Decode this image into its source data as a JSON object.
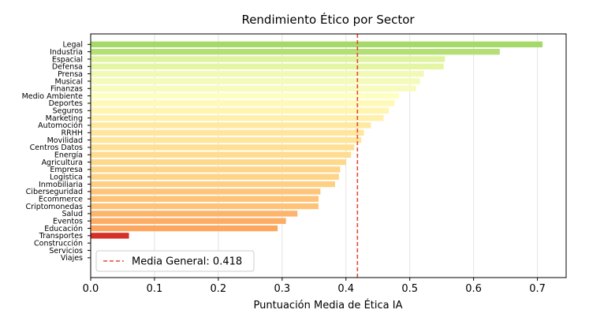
{
  "chart_data": {
    "type": "bar",
    "orientation": "horizontal",
    "title": "Rendimiento Ético por Sector",
    "xlabel": "Puntuación Media de Ética IA",
    "ylabel": "",
    "xlim": [
      0,
      0.745
    ],
    "xticks": [
      "0.0",
      "0.1",
      "0.2",
      "0.3",
      "0.4",
      "0.5",
      "0.6",
      "0.7"
    ],
    "xtick_values": [
      0,
      0.1,
      0.2,
      0.3,
      0.4,
      0.5,
      0.6,
      0.7
    ],
    "grid": "x",
    "categories": [
      "Legal",
      "Industria",
      "Espacial",
      "Defensa",
      "Prensa",
      "Musical",
      "Finanzas",
      "Medio Ambiente",
      "Deportes",
      "Seguros",
      "Marketing",
      "Automoción",
      "RRHH",
      "Movilidad",
      "Centros Datos",
      "Energía",
      "Agricultura",
      "Empresa",
      "Logística",
      "Inmobiliaria",
      "Ciberseguridad",
      "Ecommerce",
      "Criptomonedas",
      "Salud",
      "Eventos",
      "Educación",
      "Transportes",
      "Construcción",
      "Servicios",
      "Viajes"
    ],
    "values": [
      0.708,
      0.641,
      0.555,
      0.553,
      0.522,
      0.516,
      0.51,
      0.483,
      0.476,
      0.467,
      0.459,
      0.439,
      0.428,
      0.424,
      0.413,
      0.408,
      0.4,
      0.391,
      0.389,
      0.383,
      0.36,
      0.357,
      0.357,
      0.324,
      0.306,
      0.293,
      0.06,
      0.0,
      0.0,
      0.0
    ],
    "colors": [
      "#a6d96a",
      "#b5df74",
      "#e0f3a0",
      "#e4f5a4",
      "#f1f9b5",
      "#f4fab9",
      "#f7fbbd",
      "#feffc0",
      "#fff8b6",
      "#fff4b0",
      "#fff1ab",
      "#ffe9a0",
      "#ffe69c",
      "#ffe49a",
      "#fedf94",
      "#fedc90",
      "#fed98c",
      "#fed588",
      "#fed487",
      "#fed084",
      "#fec47a",
      "#fec379",
      "#fec379",
      "#fdb46b",
      "#fdac64",
      "#fca65f",
      "#d62f27",
      "#d62f27",
      "#d62f27",
      "#d62f27"
    ],
    "reference_line": {
      "value": 0.418,
      "color": "#e34a33",
      "style": "dashed",
      "label": "Media General: 0.418"
    },
    "legend": {
      "placement": "lower-left",
      "entries": [
        "Media General: 0.418"
      ]
    }
  }
}
